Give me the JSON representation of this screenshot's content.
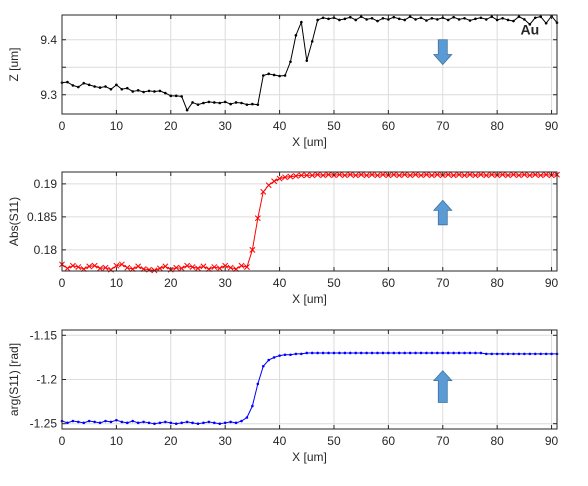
{
  "figure": {
    "annotation_label": "Au",
    "arrow_color": "#5B9BD5"
  },
  "chart_data": [
    {
      "type": "line",
      "title": "",
      "xlabel": "X [um]",
      "ylabel": "Z [um]",
      "xlim": [
        0,
        91
      ],
      "ylim": [
        9.265,
        9.445
      ],
      "xticks": [
        0,
        10,
        20,
        30,
        40,
        50,
        60,
        70,
        80,
        90
      ],
      "yticks": [
        9.3,
        9.35,
        9.4
      ],
      "ytick_labels": [
        "9.3",
        "",
        "9.4"
      ],
      "grid": true,
      "annotation": {
        "text": "Au",
        "x": 86,
        "y": 9.41
      },
      "arrow": {
        "direction": "down",
        "x": 70,
        "y_top": 9.4,
        "y_bottom": 9.355
      },
      "series": [
        {
          "color": "#000000",
          "marker": "dot",
          "x": [
            0,
            1,
            2,
            3,
            4,
            5,
            6,
            7,
            8,
            9,
            10,
            11,
            12,
            13,
            14,
            15,
            16,
            17,
            18,
            19,
            20,
            21,
            22,
            23,
            24,
            25,
            26,
            27,
            28,
            29,
            30,
            31,
            32,
            33,
            34,
            35,
            36,
            37,
            38,
            39,
            40,
            41,
            42,
            43,
            44,
            45,
            46,
            47,
            48,
            49,
            50,
            51,
            52,
            53,
            54,
            55,
            56,
            57,
            58,
            59,
            60,
            61,
            62,
            63,
            64,
            65,
            66,
            67,
            68,
            69,
            70,
            71,
            72,
            73,
            74,
            75,
            76,
            77,
            78,
            79,
            80,
            81,
            82,
            83,
            84,
            85,
            86,
            87,
            88,
            89,
            90,
            91
          ],
          "y": [
            9.322,
            9.323,
            9.317,
            9.314,
            9.321,
            9.318,
            9.315,
            9.313,
            9.315,
            9.31,
            9.318,
            9.31,
            9.312,
            9.306,
            9.308,
            9.305,
            9.307,
            9.306,
            9.307,
            9.303,
            9.298,
            9.298,
            9.297,
            9.272,
            9.286,
            9.282,
            9.285,
            9.287,
            9.286,
            9.285,
            9.287,
            9.283,
            9.286,
            9.285,
            9.282,
            9.283,
            9.282,
            9.335,
            9.338,
            9.336,
            9.334,
            9.335,
            9.36,
            9.408,
            9.432,
            9.362,
            9.397,
            9.436,
            9.44,
            9.438,
            9.44,
            9.436,
            9.438,
            9.441,
            9.436,
            9.442,
            9.437,
            9.439,
            9.434,
            9.439,
            9.437,
            9.441,
            9.438,
            9.436,
            9.442,
            9.437,
            9.44,
            9.435,
            9.439,
            9.437,
            9.44,
            9.436,
            9.441,
            9.437,
            9.439,
            9.435,
            9.438,
            9.44,
            9.437,
            9.442,
            9.436,
            9.439,
            9.436,
            9.434,
            9.442,
            9.437,
            9.428,
            9.44,
            9.442,
            9.43,
            9.443,
            9.431
          ]
        }
      ]
    },
    {
      "type": "line",
      "title": "",
      "xlabel": "X [um]",
      "ylabel": "Abs(S11)",
      "xlim": [
        0,
        91
      ],
      "ylim": [
        0.1768,
        0.1918
      ],
      "xticks": [
        0,
        10,
        20,
        30,
        40,
        50,
        60,
        70,
        80,
        90
      ],
      "yticks": [
        0.18,
        0.185,
        0.19
      ],
      "ytick_labels": [
        "0.18",
        "0.185",
        "0.19"
      ],
      "grid": true,
      "arrow": {
        "direction": "up",
        "x": 70,
        "y_top": 0.1875,
        "y_bottom": 0.1838
      },
      "series": [
        {
          "color": "#ff0000",
          "marker": "x",
          "x": [
            0,
            1,
            2,
            3,
            4,
            5,
            6,
            7,
            8,
            9,
            10,
            11,
            12,
            13,
            14,
            15,
            16,
            17,
            18,
            19,
            20,
            21,
            22,
            23,
            24,
            25,
            26,
            27,
            28,
            29,
            30,
            31,
            32,
            33,
            34,
            35,
            36,
            37,
            38,
            39,
            40,
            41,
            42,
            43,
            44,
            45,
            46,
            47,
            48,
            49,
            50,
            51,
            52,
            53,
            54,
            55,
            56,
            57,
            58,
            59,
            60,
            61,
            62,
            63,
            64,
            65,
            66,
            67,
            68,
            69,
            70,
            71,
            72,
            73,
            74,
            75,
            76,
            77,
            78,
            79,
            80,
            81,
            82,
            83,
            84,
            85,
            86,
            87,
            88,
            89,
            90,
            91
          ],
          "y": [
            0.1778,
            0.1772,
            0.1776,
            0.1774,
            0.1771,
            0.1775,
            0.1776,
            0.1772,
            0.1773,
            0.177,
            0.1776,
            0.1778,
            0.1773,
            0.1771,
            0.1775,
            0.1771,
            0.177,
            0.1769,
            0.1772,
            0.1775,
            0.177,
            0.1773,
            0.1772,
            0.1776,
            0.1774,
            0.1772,
            0.1775,
            0.1771,
            0.1774,
            0.1772,
            0.1776,
            0.1773,
            0.1771,
            0.1776,
            0.1774,
            0.18,
            0.1848,
            0.1888,
            0.1898,
            0.1904,
            0.1908,
            0.191,
            0.1911,
            0.1912,
            0.1913,
            0.1913,
            0.1913,
            0.1914,
            0.1913,
            0.1914,
            0.1913,
            0.1914,
            0.1913,
            0.1914,
            0.1913,
            0.1914,
            0.1913,
            0.1914,
            0.1913,
            0.1914,
            0.1913,
            0.1914,
            0.1913,
            0.1914,
            0.1913,
            0.1914,
            0.1913,
            0.1914,
            0.1913,
            0.1914,
            0.1913,
            0.1914,
            0.1913,
            0.1914,
            0.1913,
            0.1914,
            0.1913,
            0.1914,
            0.1913,
            0.1914,
            0.1913,
            0.1914,
            0.1913,
            0.1914,
            0.1913,
            0.1914,
            0.1913,
            0.1914,
            0.1913,
            0.1914,
            0.1913,
            0.1914
          ]
        }
      ]
    },
    {
      "type": "line",
      "title": "",
      "xlabel": "X [um]",
      "ylabel": "arg(S11) [rad]",
      "xlim": [
        0,
        91
      ],
      "ylim": [
        -1.256,
        -1.144
      ],
      "xticks": [
        0,
        10,
        20,
        30,
        40,
        50,
        60,
        70,
        80,
        90
      ],
      "yticks": [
        -1.25,
        -1.2,
        -1.15
      ],
      "ytick_labels": [
        "-1.25",
        "-1.2",
        "-1.15"
      ],
      "grid": true,
      "arrow": {
        "direction": "up",
        "x": 70,
        "y_top": -1.19,
        "y_bottom": -1.226
      },
      "series": [
        {
          "color": "#0000ff",
          "marker": "dot",
          "x": [
            0,
            1,
            2,
            3,
            4,
            5,
            6,
            7,
            8,
            9,
            10,
            11,
            12,
            13,
            14,
            15,
            16,
            17,
            18,
            19,
            20,
            21,
            22,
            23,
            24,
            25,
            26,
            27,
            28,
            29,
            30,
            31,
            32,
            33,
            34,
            35,
            36,
            37,
            38,
            39,
            40,
            41,
            42,
            43,
            44,
            45,
            46,
            47,
            48,
            49,
            50,
            51,
            52,
            53,
            54,
            55,
            56,
            57,
            58,
            59,
            60,
            61,
            62,
            63,
            64,
            65,
            66,
            67,
            68,
            69,
            70,
            71,
            72,
            73,
            74,
            75,
            76,
            77,
            78,
            79,
            80,
            81,
            82,
            83,
            84,
            85,
            86,
            87,
            88,
            89,
            90,
            91
          ],
          "y": [
            -1.247,
            -1.249,
            -1.247,
            -1.248,
            -1.249,
            -1.247,
            -1.248,
            -1.249,
            -1.247,
            -1.248,
            -1.246,
            -1.248,
            -1.249,
            -1.247,
            -1.249,
            -1.248,
            -1.249,
            -1.25,
            -1.249,
            -1.248,
            -1.249,
            -1.25,
            -1.249,
            -1.248,
            -1.249,
            -1.25,
            -1.249,
            -1.248,
            -1.249,
            -1.25,
            -1.249,
            -1.248,
            -1.249,
            -1.247,
            -1.243,
            -1.23,
            -1.205,
            -1.185,
            -1.178,
            -1.175,
            -1.173,
            -1.172,
            -1.172,
            -1.171,
            -1.171,
            -1.17,
            -1.17,
            -1.17,
            -1.17,
            -1.17,
            -1.17,
            -1.17,
            -1.17,
            -1.17,
            -1.17,
            -1.17,
            -1.17,
            -1.17,
            -1.17,
            -1.17,
            -1.17,
            -1.17,
            -1.17,
            -1.17,
            -1.17,
            -1.17,
            -1.17,
            -1.17,
            -1.17,
            -1.17,
            -1.17,
            -1.17,
            -1.17,
            -1.17,
            -1.17,
            -1.17,
            -1.17,
            -1.17,
            -1.171,
            -1.171,
            -1.171,
            -1.171,
            -1.171,
            -1.171,
            -1.171,
            -1.171,
            -1.171,
            -1.171,
            -1.171,
            -1.171,
            -1.171,
            -1.171
          ]
        }
      ]
    }
  ]
}
